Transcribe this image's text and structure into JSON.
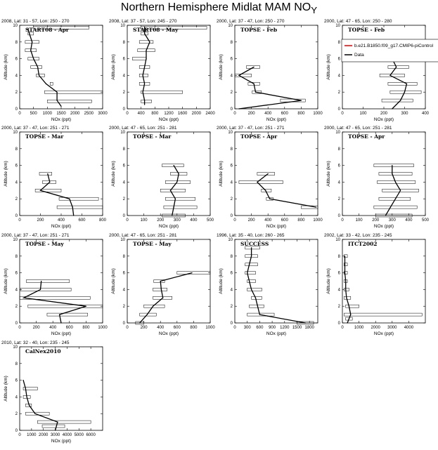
{
  "figure": {
    "title": "Northern Hemisphere Midlat MAM NO",
    "title_sub": "Y"
  },
  "legend": {
    "model_label": "b.e21.B1850.f09_g17.CMIP6-piControl",
    "data_label": "Data",
    "model_color": "#e00000",
    "data_color": "#000000"
  },
  "chart_data": [
    {
      "type": "line",
      "header": "2008, Lat: 31 - 57, Lon: 250 - 270",
      "title": "START08 - Apr",
      "xlabel": "NOx (ppt)",
      "ylabel": "Altitude (km)",
      "xlim": [
        0,
        3000
      ],
      "xticks": [
        0,
        500,
        1000,
        1500,
        2000,
        2500,
        3000
      ],
      "ylim": [
        0,
        10
      ],
      "yticks": [
        0,
        2,
        4,
        6,
        8,
        10
      ],
      "data": [
        [
          1500,
          0.3
        ],
        [
          1350,
          1
        ],
        [
          1350,
          2
        ],
        [
          950,
          3
        ],
        [
          700,
          4
        ],
        [
          650,
          5
        ],
        [
          500,
          6
        ],
        [
          400,
          7
        ],
        [
          450,
          8
        ],
        [
          350,
          9
        ],
        [
          300,
          9.6
        ]
      ],
      "bars": [
        [
          1000,
          2600,
          0.9
        ],
        [
          900,
          3000,
          2
        ],
        [
          1100,
          1200,
          3
        ],
        [
          600,
          900,
          4
        ],
        [
          400,
          800,
          5
        ],
        [
          300,
          700,
          6
        ],
        [
          200,
          600,
          7
        ],
        [
          200,
          700,
          8
        ],
        [
          300,
          500,
          9
        ],
        [
          500,
          2500,
          9.7
        ]
      ]
    },
    {
      "type": "line",
      "header": "2008, Lat: 37 - 57, Lon: 245 - 270",
      "title": "START08 - May",
      "xlabel": "NOx (ppt)",
      "ylabel": "Altitude (km)",
      "xlim": [
        0,
        2400
      ],
      "xticks": [
        0,
        400,
        800,
        1200,
        1600,
        2000,
        2400
      ],
      "ylim": [
        0,
        10
      ],
      "yticks": [
        0,
        2,
        4,
        6,
        8,
        10
      ],
      "data": [
        [
          500,
          0.5
        ],
        [
          500,
          1
        ],
        [
          450,
          2
        ],
        [
          500,
          3
        ],
        [
          450,
          4
        ],
        [
          500,
          5
        ],
        [
          550,
          6
        ],
        [
          550,
          7
        ],
        [
          650,
          8
        ],
        [
          500,
          9
        ],
        [
          500,
          9.8
        ]
      ],
      "bars": [
        [
          400,
          700,
          0.9
        ],
        [
          400,
          1600,
          2
        ],
        [
          350,
          650,
          3
        ],
        [
          350,
          600,
          4
        ],
        [
          350,
          650,
          5
        ],
        [
          150,
          550,
          6
        ],
        [
          300,
          800,
          7
        ],
        [
          350,
          750,
          8
        ],
        [
          400,
          600,
          9
        ],
        [
          400,
          2300,
          9.7
        ]
      ]
    },
    {
      "type": "line",
      "header": "2000, Lat: 37 - 47, Lon: 250 - 270",
      "title": "TOPSE - Feb",
      "xlabel": "NOx (ppt)",
      "ylabel": "Altitude (km)",
      "xlim": [
        0,
        1000
      ],
      "xticks": [
        0,
        200,
        400,
        600,
        800,
        1000
      ],
      "ylim": [
        0,
        10
      ],
      "yticks": [
        0,
        2,
        4,
        6,
        8,
        10
      ],
      "data": [
        [
          50,
          0
        ],
        [
          800,
          1
        ],
        [
          250,
          2
        ],
        [
          230,
          3
        ],
        [
          50,
          4
        ],
        [
          230,
          5
        ]
      ],
      "bars": [
        [
          550,
          850,
          1
        ],
        [
          210,
          320,
          2
        ],
        [
          160,
          300,
          3
        ],
        [
          0,
          200,
          4
        ],
        [
          140,
          300,
          5
        ]
      ]
    },
    {
      "type": "line",
      "header": "2000, Lat: 47 - 65, Lon: 250 - 280",
      "title": "TOPSE - Feb",
      "xlabel": "NOx (ppt)",
      "ylabel": "Altitude (km)",
      "xlim": [
        0,
        400
      ],
      "xticks": [
        0,
        100,
        200,
        300,
        400
      ],
      "ylim": [
        0,
        10
      ],
      "yticks": [
        0,
        2,
        4,
        6,
        8,
        10
      ],
      "data": [
        [
          240,
          0
        ],
        [
          280,
          1
        ],
        [
          300,
          2
        ],
        [
          310,
          3
        ],
        [
          230,
          4
        ],
        [
          260,
          5
        ],
        [
          240,
          6
        ]
      ],
      "bars": [
        [
          190,
          340,
          1
        ],
        [
          230,
          380,
          2
        ],
        [
          220,
          360,
          3
        ],
        [
          180,
          300,
          4
        ],
        [
          220,
          320,
          5
        ],
        [
          200,
          300,
          6
        ]
      ]
    },
    {
      "type": "line",
      "header": "2000, Lat: 37 - 47, Lon: 251 - 271",
      "title": "TOPSE - Mar",
      "xlabel": "NOx (ppt)",
      "ylabel": "Altitude (km)",
      "xlim": [
        0,
        800
      ],
      "xticks": [
        0,
        200,
        400,
        600,
        800
      ],
      "ylim": [
        0,
        10
      ],
      "yticks": [
        0,
        2,
        4,
        6,
        8,
        10
      ],
      "data": [
        [
          520,
          0
        ],
        [
          510,
          1
        ],
        [
          480,
          2
        ],
        [
          200,
          3
        ],
        [
          290,
          4
        ],
        [
          270,
          5
        ]
      ],
      "bars": [
        [
          360,
          800,
          1
        ],
        [
          380,
          760,
          2
        ],
        [
          150,
          400,
          3
        ],
        [
          220,
          350,
          4
        ],
        [
          190,
          310,
          5
        ]
      ]
    },
    {
      "type": "line",
      "header": "2000, Lat: 47 - 65, Lon: 251 - 281",
      "title": "TOPSE - Mar",
      "xlabel": "NOx (ppt)",
      "ylabel": "Altitude (km)",
      "xlim": [
        0,
        500
      ],
      "xticks": [
        0,
        100,
        200,
        300,
        400,
        500
      ],
      "ylim": [
        0,
        10
      ],
      "yticks": [
        0,
        2,
        4,
        6,
        8,
        10
      ],
      "data": [
        [
          270,
          0
        ],
        [
          280,
          1
        ],
        [
          290,
          2
        ],
        [
          260,
          3
        ],
        [
          300,
          4
        ],
        [
          310,
          5
        ],
        [
          280,
          6
        ]
      ],
      "bars": [
        [
          210,
          350,
          0
        ],
        [
          220,
          420,
          1
        ],
        [
          230,
          410,
          2
        ],
        [
          200,
          350,
          3
        ],
        [
          230,
          380,
          4
        ],
        [
          260,
          360,
          5
        ],
        [
          210,
          340,
          6
        ]
      ]
    },
    {
      "type": "line",
      "header": "2000, Lat: 37 - 47, Lon: 251 - 271",
      "title": "TOPSE - Apr",
      "xlabel": "NOx (ppt)",
      "ylabel": "Altitude (km)",
      "xlim": [
        0,
        1000
      ],
      "xticks": [
        0,
        200,
        400,
        600,
        800,
        1000
      ],
      "ylim": [
        0,
        10
      ],
      "yticks": [
        0,
        2,
        4,
        6,
        8,
        10
      ],
      "data": [
        [
          980,
          1
        ],
        [
          420,
          2
        ],
        [
          370,
          3
        ],
        [
          270,
          4
        ],
        [
          400,
          5
        ]
      ],
      "bars": [
        [
          800,
          1000,
          1
        ],
        [
          380,
          460,
          2
        ],
        [
          320,
          440,
          3
        ],
        [
          50,
          580,
          4
        ],
        [
          270,
          480,
          5
        ]
      ]
    },
    {
      "type": "line",
      "header": "2000, Lat: 47 - 65, Lon: 251 - 281",
      "title": "TOPSE - Apr",
      "xlabel": "NOx (ppt)",
      "ylabel": "Altitude (km)",
      "xlim": [
        0,
        500
      ],
      "xticks": [
        0,
        100,
        200,
        300,
        400,
        500
      ],
      "ylim": [
        0,
        10
      ],
      "yticks": [
        0,
        2,
        4,
        6,
        8,
        10
      ],
      "data": [
        [
          260,
          0
        ],
        [
          290,
          1
        ],
        [
          320,
          2
        ],
        [
          350,
          3
        ],
        [
          320,
          4
        ],
        [
          300,
          5
        ],
        [
          300,
          6
        ]
      ],
      "bars": [
        [
          200,
          420,
          0
        ],
        [
          190,
          450,
          1
        ],
        [
          220,
          410,
          2
        ],
        [
          240,
          460,
          3
        ],
        [
          210,
          440,
          4
        ],
        [
          220,
          420,
          5
        ],
        [
          190,
          430,
          6
        ]
      ]
    },
    {
      "type": "line",
      "header": "2000, Lat: 37 - 47, Lon: 251 - 271",
      "title": "TOPSE - May",
      "xlabel": "NOx (ppt)",
      "ylabel": "Altitude (km)",
      "xlim": [
        0,
        1000
      ],
      "xticks": [
        0,
        200,
        400,
        600,
        800,
        1000
      ],
      "ylim": [
        0,
        10
      ],
      "yticks": [
        0,
        2,
        4,
        6,
        8,
        10
      ],
      "data": [
        [
          500,
          0
        ],
        [
          480,
          1
        ],
        [
          800,
          2
        ],
        [
          50,
          3
        ],
        [
          250,
          4
        ],
        [
          260,
          5
        ]
      ],
      "bars": [
        [
          330,
          820,
          1
        ],
        [
          100,
          1000,
          2
        ],
        [
          0,
          850,
          3
        ],
        [
          10,
          620,
          4
        ],
        [
          80,
          600,
          5
        ]
      ]
    },
    {
      "type": "line",
      "header": "2000, Lat: 47 - 65, Lon: 251 - 281",
      "title": "TOPSE - May",
      "xlabel": "NOx (ppt)",
      "ylabel": "Altitude (km)",
      "xlim": [
        0,
        1000
      ],
      "xticks": [
        0,
        200,
        400,
        600,
        800,
        1000
      ],
      "ylim": [
        0,
        10
      ],
      "yticks": [
        0,
        2,
        4,
        6,
        8,
        10
      ],
      "data": [
        [
          150,
          0
        ],
        [
          240,
          1
        ],
        [
          310,
          2
        ],
        [
          430,
          3
        ],
        [
          410,
          4
        ],
        [
          400,
          5
        ],
        [
          780,
          6
        ]
      ],
      "bars": [
        [
          100,
          200,
          0
        ],
        [
          150,
          350,
          1
        ],
        [
          200,
          450,
          2
        ],
        [
          310,
          540,
          3
        ],
        [
          310,
          480,
          4
        ],
        [
          320,
          450,
          5
        ],
        [
          600,
          1000,
          6
        ]
      ]
    },
    {
      "type": "line",
      "header": "1996, Lat: 35 - 40, Lon: 260 - 265",
      "title": "SUCCESS",
      "xlabel": "NOx (ppt)",
      "ylabel": "Altitude (km)",
      "xlim": [
        0,
        2000
      ],
      "xticks": [
        0,
        300,
        600,
        900,
        1200,
        1500,
        1800
      ],
      "ylim": [
        0,
        10
      ],
      "yticks": [
        0,
        2,
        4,
        6,
        8,
        10
      ],
      "data": [
        [
          1700,
          0
        ],
        [
          600,
          1
        ],
        [
          550,
          2
        ],
        [
          500,
          3
        ],
        [
          400,
          4
        ],
        [
          350,
          5
        ],
        [
          300,
          6
        ],
        [
          350,
          7
        ],
        [
          400,
          8
        ],
        [
          400,
          9
        ]
      ],
      "bars": [
        [
          1500,
          1900,
          0
        ],
        [
          300,
          950,
          1
        ],
        [
          350,
          700,
          2
        ],
        [
          400,
          650,
          3
        ],
        [
          300,
          650,
          4
        ],
        [
          300,
          500,
          5
        ],
        [
          250,
          500,
          6
        ],
        [
          250,
          550,
          7
        ],
        [
          250,
          550,
          8
        ],
        [
          250,
          600,
          9
        ]
      ]
    },
    {
      "type": "line",
      "header": "2002, Lat: 33 - 42, Lon: 235 - 245",
      "title": "ITCT2002",
      "xlabel": "NOx (ppt)",
      "ylabel": "Altitude (km)",
      "xlim": [
        0,
        5000
      ],
      "xticks": [
        0,
        1000,
        2000,
        3000,
        4000
      ],
      "ylim": [
        0,
        10
      ],
      "yticks": [
        0,
        2,
        4,
        6,
        8,
        10
      ],
      "data": [
        [
          300,
          0
        ],
        [
          500,
          1
        ],
        [
          400,
          2
        ],
        [
          250,
          3
        ],
        [
          200,
          4
        ],
        [
          200,
          5
        ],
        [
          150,
          6
        ],
        [
          150,
          7
        ],
        [
          150,
          8
        ]
      ],
      "bars": [
        [
          200,
          600,
          0.5
        ],
        [
          100,
          4800,
          1
        ],
        [
          200,
          1000,
          2
        ],
        [
          100,
          500,
          3
        ],
        [
          100,
          400,
          4
        ],
        [
          100,
          300,
          5
        ],
        [
          100,
          300,
          6
        ],
        [
          100,
          300,
          7
        ],
        [
          100,
          300,
          8
        ]
      ]
    },
    {
      "type": "line",
      "header": "2010, Lat: 32 - 40, Lon: 235 - 245",
      "title": "CalNex2010",
      "xlabel": "NOx (ppt)",
      "ylabel": "Altitude (km)",
      "xlim": [
        0,
        7000
      ],
      "xticks": [
        0,
        1000,
        2000,
        3000,
        4000,
        5000,
        6000
      ],
      "ylim": [
        0,
        10
      ],
      "yticks": [
        0,
        2,
        4,
        6,
        8,
        10
      ],
      "data": [
        [
          3000,
          0
        ],
        [
          3200,
          1
        ],
        [
          1300,
          2
        ],
        [
          800,
          3
        ],
        [
          600,
          4
        ],
        [
          500,
          5
        ],
        [
          300,
          6
        ]
      ],
      "bars": [
        [
          1900,
          3800,
          0.5
        ],
        [
          1500,
          6000,
          1
        ],
        [
          500,
          2500,
          2
        ],
        [
          500,
          1000,
          3
        ],
        [
          300,
          900,
          4
        ],
        [
          300,
          1500,
          5
        ]
      ]
    }
  ]
}
